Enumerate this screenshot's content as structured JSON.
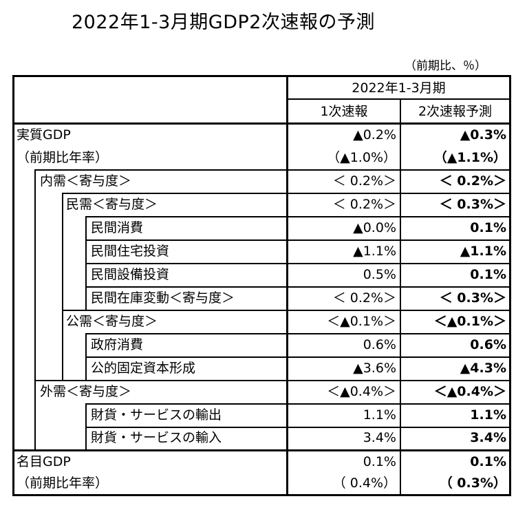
{
  "title": "2022年1-3月期GDP2次速報の予測",
  "unit": "（前期比、％）",
  "header": {
    "period": "2022年1-3月期",
    "col1": "1次速報",
    "col2": "2次速報予測"
  },
  "rows": [
    {
      "label": "実質GDP",
      "v1": "▲0.2%",
      "v2": "▲0.3%"
    },
    {
      "label": "（前期比年率）",
      "v1": "（▲1.0%）",
      "v2": "（▲1.1%）"
    },
    {
      "label": "内需＜寄与度＞",
      "v1": "＜ 0.2%＞",
      "v2": "＜ 0.2%＞"
    },
    {
      "label": "民需＜寄与度＞",
      "v1": "＜ 0.2%＞",
      "v2": "＜ 0.3%＞"
    },
    {
      "label": "民間消費",
      "v1": "▲0.0%",
      "v2": "0.1%"
    },
    {
      "label": "民間住宅投資",
      "v1": "▲1.1%",
      "v2": "▲1.1%"
    },
    {
      "label": "民間設備投資",
      "v1": "0.5%",
      "v2": "0.1%"
    },
    {
      "label": "民間在庫変動＜寄与度＞",
      "v1": "＜ 0.2%＞",
      "v2": "＜ 0.3%＞"
    },
    {
      "label": "公需＜寄与度＞",
      "v1": "＜▲0.1%＞",
      "v2": "＜▲0.1%＞"
    },
    {
      "label": "政府消費",
      "v1": "0.6%",
      "v2": "0.6%"
    },
    {
      "label": "公的固定資本形成",
      "v1": "▲3.6%",
      "v2": "▲4.3%"
    },
    {
      "label": "外需＜寄与度＞",
      "v1": "＜▲0.4%＞",
      "v2": "＜▲0.4%＞"
    },
    {
      "label": "財貨・サービスの輸出",
      "v1": "1.1%",
      "v2": "1.1%"
    },
    {
      "label": "財貨・サービスの輸入",
      "v1": "3.4%",
      "v2": "3.4%"
    },
    {
      "label": "名目GDP",
      "v1": "0.1%",
      "v2": "0.1%"
    },
    {
      "label": "（前期比年率）",
      "v1": "（ 0.4%）",
      "v2": "（ 0.3%）"
    }
  ]
}
